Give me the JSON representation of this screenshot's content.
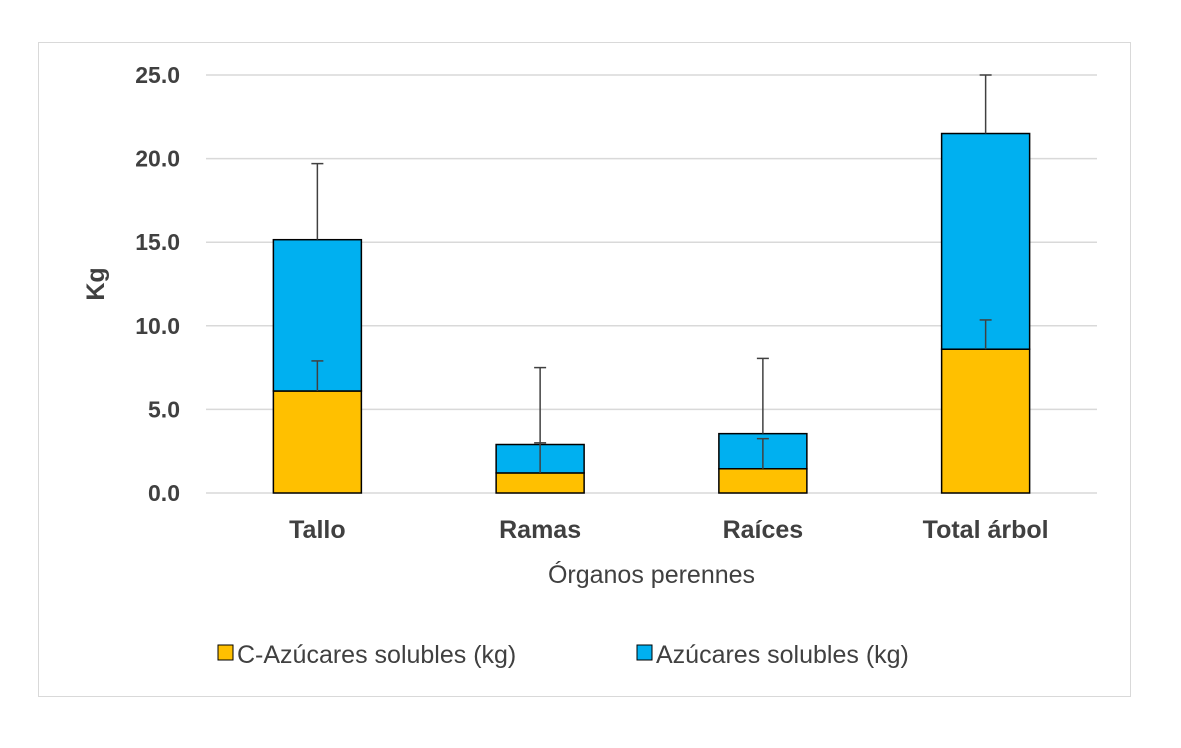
{
  "chart_data": {
    "type": "bar",
    "stacked": true,
    "categories": [
      "Tallo",
      "Ramas",
      "Raíces",
      "Total árbol"
    ],
    "series": [
      {
        "name": "C-Azúcares solubles (kg)",
        "color": "#ffc000",
        "values": [
          6.1,
          1.2,
          1.45,
          8.6
        ],
        "error_plus": [
          1.8,
          1.8,
          1.8,
          1.75
        ]
      },
      {
        "name": "Azúcares solubles (kg)",
        "color": "#00b0f0",
        "values": [
          9.05,
          1.7,
          2.1,
          12.9
        ],
        "error_plus": [
          4.55,
          4.6,
          4.5,
          3.5
        ]
      }
    ],
    "xlabel": "Órganos perennes",
    "ylabel": "Kg",
    "ylim": [
      0,
      25
    ],
    "yticks": [
      0,
      5,
      10,
      15,
      20,
      25
    ],
    "ytick_labels": [
      "0.0",
      "5.0",
      "10.0",
      "15.0",
      "20.0",
      "25.0"
    ],
    "grid": true,
    "legend_position": "bottom",
    "colors": {
      "gridline": "#d9d9d9",
      "text": "#404040",
      "outline": "#000000",
      "errorbar": "#404040"
    }
  }
}
